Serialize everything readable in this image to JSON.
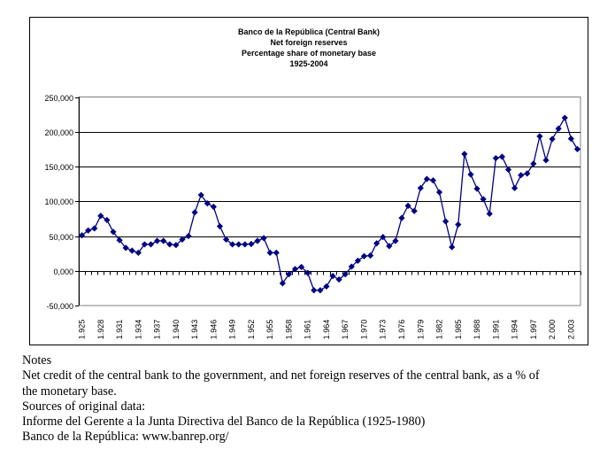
{
  "chart_data": {
    "type": "line",
    "title_lines": [
      "Banco de la República (Central Bank)",
      "Net foreign reserves",
      "Percentage share of monetary base",
      "1925-2004"
    ],
    "xlabel": "",
    "ylabel": "",
    "ylim": [
      -50000,
      250000
    ],
    "y_ticks": [
      250000,
      200000,
      150000,
      100000,
      50000,
      0,
      -50000
    ],
    "y_tick_labels": [
      "250,000",
      "200,000",
      "150,000",
      "100,000",
      "50,000",
      "0,000",
      "-50,000"
    ],
    "x_tick_labels": [
      "1.925",
      "1.928",
      "1.931",
      "1.934",
      "1.937",
      "1.940",
      "1.943",
      "1.946",
      "1.949",
      "1.952",
      "1.955",
      "1.958",
      "1.961",
      "1.964",
      "1.967",
      "1.970",
      "1.973",
      "1.976",
      "1.979",
      "1.982",
      "1.985",
      "1.988",
      "1.991",
      "1.994",
      "1.997",
      "2.000",
      "2.003"
    ],
    "grid": true,
    "legend": "none",
    "marker_color": "#000080",
    "categories": [
      1925,
      1926,
      1927,
      1928,
      1929,
      1930,
      1931,
      1932,
      1933,
      1934,
      1935,
      1936,
      1937,
      1938,
      1939,
      1940,
      1941,
      1942,
      1943,
      1944,
      1945,
      1946,
      1947,
      1948,
      1949,
      1950,
      1951,
      1952,
      1953,
      1954,
      1955,
      1956,
      1957,
      1958,
      1959,
      1960,
      1961,
      1962,
      1963,
      1964,
      1965,
      1966,
      1967,
      1968,
      1969,
      1970,
      1971,
      1972,
      1973,
      1974,
      1975,
      1976,
      1977,
      1978,
      1979,
      1980,
      1981,
      1982,
      1983,
      1984,
      1985,
      1986,
      1987,
      1988,
      1989,
      1990,
      1991,
      1992,
      1993,
      1994,
      1995,
      1996,
      1997,
      1998,
      1999,
      2000,
      2001,
      2002,
      2003,
      2004
    ],
    "series": [
      {
        "name": "Net foreign reserves",
        "values": [
          51000,
          58000,
          61000,
          79000,
          73000,
          56000,
          44000,
          33000,
          29000,
          26000,
          38000,
          38000,
          43000,
          43000,
          38000,
          37000,
          45000,
          50000,
          84000,
          109000,
          97000,
          92000,
          64000,
          45000,
          38000,
          38000,
          38000,
          38500,
          43000,
          47000,
          26000,
          26000,
          -18000,
          -5000,
          2500,
          5500,
          -3000,
          -28000,
          -28000,
          -22500,
          -7500,
          -12500,
          -5000,
          6000,
          14500,
          21000,
          22000,
          39500,
          48500,
          35500,
          43000,
          76000,
          93500,
          86000,
          119000,
          132000,
          130000,
          113000,
          71000,
          34000,
          66500,
          168000,
          138500,
          118000,
          103000,
          82000,
          162000,
          164000,
          145500,
          119000,
          137500,
          140000,
          154000,
          193500,
          159000,
          189500,
          204500,
          220000,
          190000,
          175000
        ]
      }
    ]
  },
  "notes": {
    "heading": "Notes",
    "line1": "Net credit of the central bank to the government, and net foreign reserves of the central bank, as a % of",
    "line2": "the monetary base.",
    "line3": "Sources of original data:",
    "line4": "Informe del Gerente a la Junta Directiva del Banco de la República (1925-1980)",
    "line5": "Banco de la República: www.banrep.org/"
  }
}
